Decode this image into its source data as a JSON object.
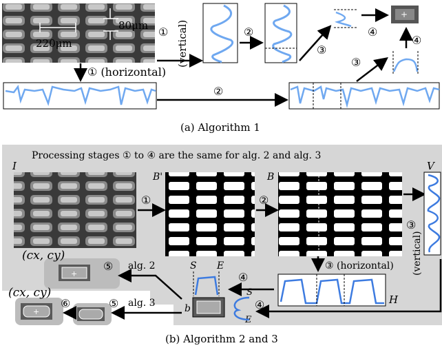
{
  "panel_a": {
    "dim_horizontal": "220μm",
    "dim_vertical": "80μm",
    "step1_vertical": "①",
    "step2": "②",
    "step3": "③",
    "step4": "④",
    "vertical_label": "(vertical)",
    "horizontal_label": "① (horizontal)",
    "step2_bottom": "②",
    "step3_lower": "③",
    "caption": "(a) Algorithm 1"
  },
  "panel_b": {
    "header": "Processing stages ① to ④ are the same for alg. 2 and alg. 3",
    "label_I": "I",
    "label_B_prime": "B'",
    "label_B": "B",
    "label_V": "V",
    "step1": "①",
    "step2": "②",
    "step3_right": "③",
    "vertical_label": "(vertical)",
    "horizontal_label": "③ (horizontal)",
    "label_H": "H",
    "label_S": "S",
    "label_E": "E",
    "step4_upper": "④",
    "step4_lower": "④",
    "label_b": "b",
    "label_S2": "S",
    "label_E2": "E",
    "step5_upper": "⑤",
    "step5_lower": "⑤",
    "step6": "⑥",
    "alg2": "alg. 2",
    "alg3": "alg. 3",
    "coord_upper": "(cx, cy)",
    "coord_lower": "(cx, cy)",
    "caption": "(b) Algorithm 2 and 3"
  },
  "colors": {
    "signal": "#6fa8f0",
    "signal_dark": "#3d7be0",
    "panel_bg": "#d6d6d6"
  }
}
